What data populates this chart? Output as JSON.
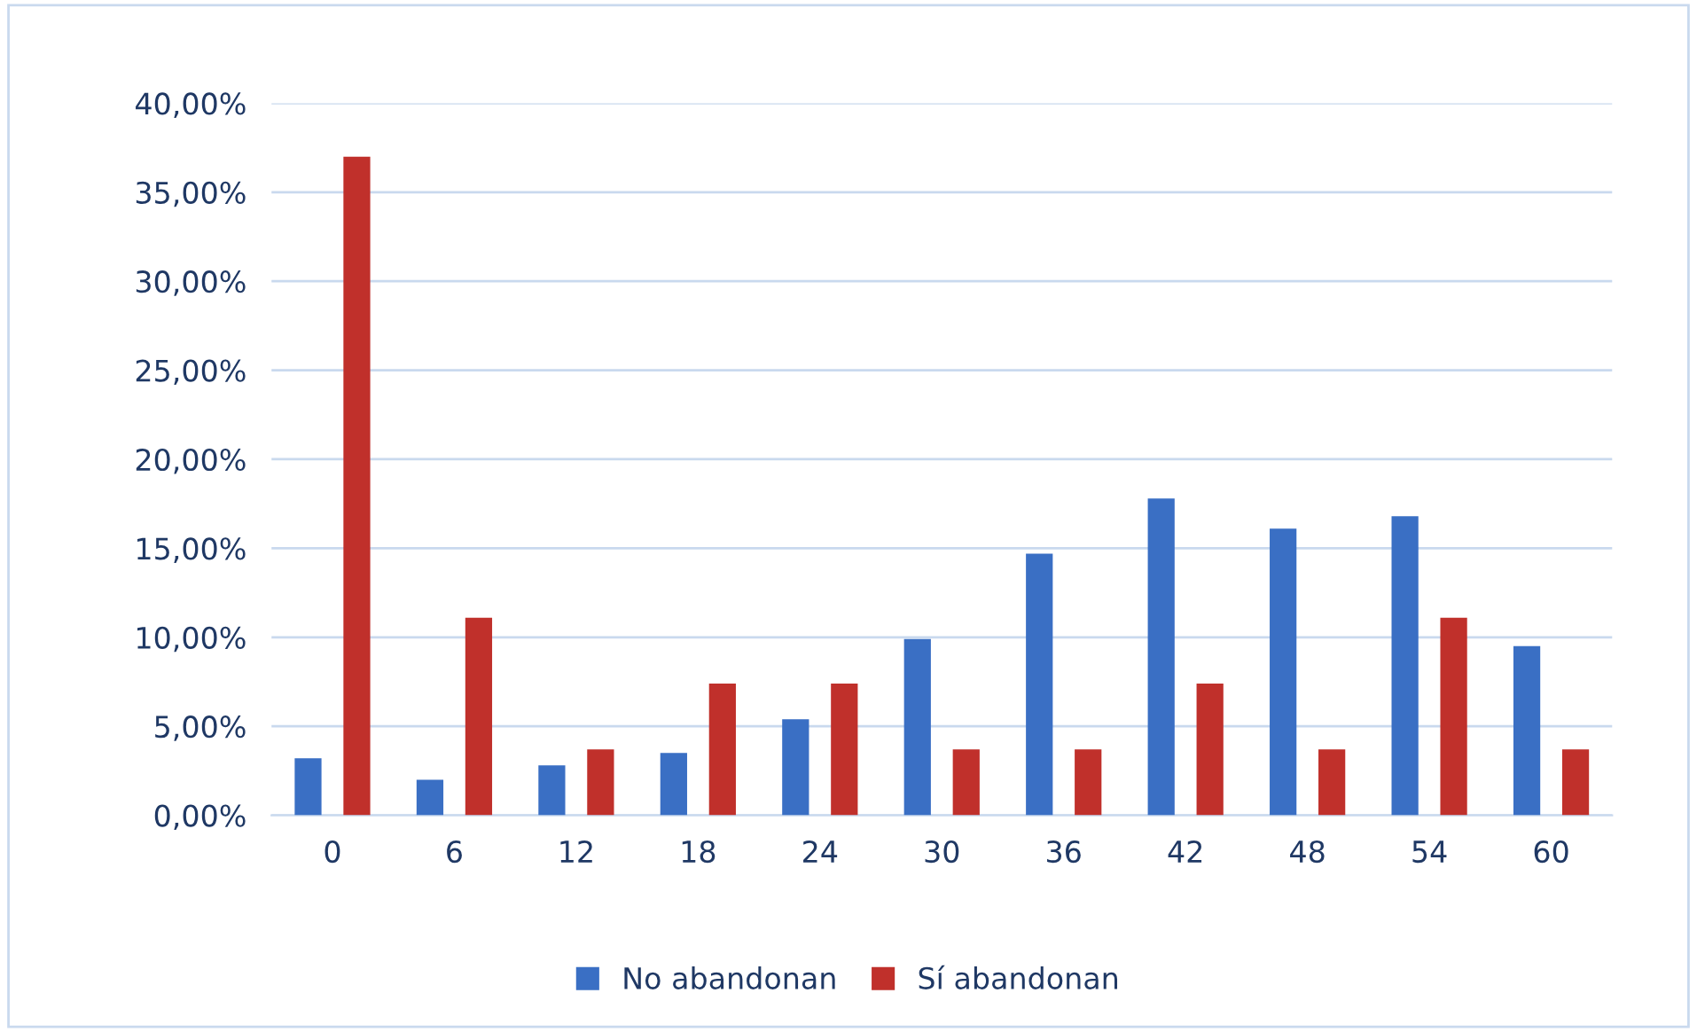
{
  "chart_data": {
    "type": "bar",
    "categories": [
      "0",
      "6",
      "12",
      "18",
      "24",
      "30",
      "36",
      "42",
      "48",
      "54",
      "60"
    ],
    "series": [
      {
        "name": "No abandonan",
        "color": "#3a6fc4",
        "values": [
          3.2,
          2.0,
          2.8,
          3.5,
          5.4,
          9.9,
          14.7,
          17.8,
          16.1,
          16.8,
          9.5
        ]
      },
      {
        "name": "Sí abandonan",
        "color": "#c0302b",
        "values": [
          37.0,
          11.1,
          3.7,
          7.4,
          7.4,
          3.7,
          3.7,
          7.4,
          3.7,
          11.1,
          3.7
        ]
      }
    ],
    "ylim": [
      0,
      40
    ],
    "yticks": [
      {
        "value": 0,
        "label": "0,00%"
      },
      {
        "value": 5,
        "label": "5,00%"
      },
      {
        "value": 10,
        "label": "10,00%"
      },
      {
        "value": 15,
        "label": "15,00%"
      },
      {
        "value": 20,
        "label": "20,00%"
      },
      {
        "value": 25,
        "label": "25,00%"
      },
      {
        "value": 30,
        "label": "30,00%"
      },
      {
        "value": 35,
        "label": "35,00%"
      },
      {
        "value": 40,
        "label": "40,00%"
      }
    ],
    "grid": "y",
    "legend": "bottom"
  }
}
